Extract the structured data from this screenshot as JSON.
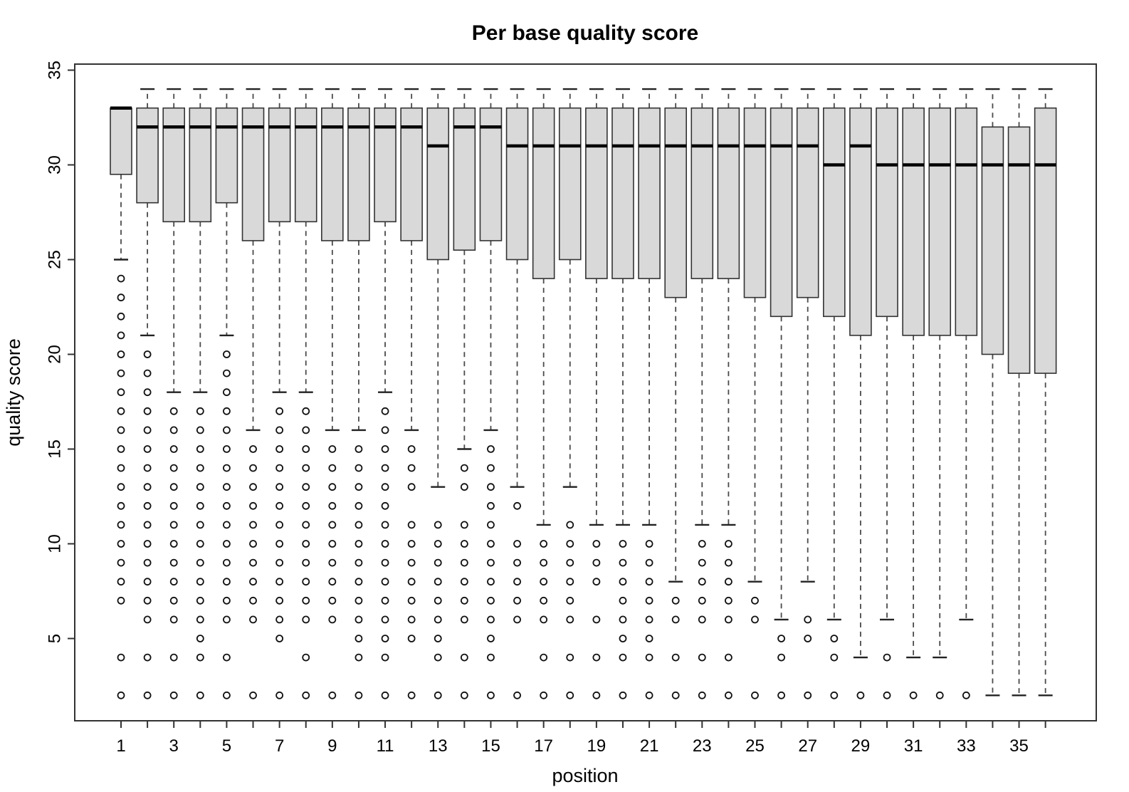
{
  "chart_data": {
    "type": "boxplot",
    "title": "Per base quality score",
    "xlabel": "position",
    "ylabel": "quality score",
    "grid": false,
    "legend": false,
    "n_positions": 36,
    "x_tick_positions_labeled": [
      1,
      3,
      5,
      7,
      9,
      11,
      13,
      15,
      17,
      19,
      21,
      23,
      25,
      27,
      29,
      31,
      33,
      35
    ],
    "y_ticks": [
      5,
      10,
      15,
      20,
      25,
      30,
      35
    ],
    "ylim": [
      0.7,
      35.3
    ],
    "xlim": [
      -0.9,
      37.9
    ],
    "colors": {
      "box_fill": "#d9d9d9",
      "box_border": "#333333",
      "median": "#000000",
      "whisker": "#4a4a4a",
      "cap": "#222222",
      "outlier": "#111111",
      "frame": "#333333",
      "background": "#ffffff"
    },
    "boxes": [
      {
        "pos": 1,
        "q1": 29.5,
        "median": 33,
        "q3": 33,
        "whisker_low": 25,
        "whisker_high": 33,
        "outliers": [
          24,
          23,
          22,
          21,
          20,
          19,
          18,
          17,
          16,
          15,
          14,
          13,
          12,
          11,
          10,
          9,
          8,
          7,
          4,
          2
        ]
      },
      {
        "pos": 2,
        "q1": 28,
        "median": 32,
        "q3": 33,
        "whisker_low": 21,
        "whisker_high": 34,
        "outliers": [
          20,
          19,
          18,
          17,
          16,
          15,
          14,
          13,
          12,
          11,
          10,
          9,
          8,
          7,
          6,
          4,
          2
        ]
      },
      {
        "pos": 3,
        "q1": 27,
        "median": 32,
        "q3": 33,
        "whisker_low": 18,
        "whisker_high": 34,
        "outliers": [
          17,
          16,
          15,
          14,
          13,
          12,
          11,
          10,
          9,
          8,
          7,
          6,
          4,
          2
        ]
      },
      {
        "pos": 4,
        "q1": 27,
        "median": 32,
        "q3": 33,
        "whisker_low": 18,
        "whisker_high": 34,
        "outliers": [
          17,
          16,
          15,
          14,
          13,
          12,
          11,
          10,
          9,
          8,
          7,
          6,
          5,
          4,
          2
        ]
      },
      {
        "pos": 5,
        "q1": 28,
        "median": 32,
        "q3": 33,
        "whisker_low": 21,
        "whisker_high": 34,
        "outliers": [
          20,
          19,
          18,
          17,
          16,
          15,
          14,
          13,
          12,
          11,
          10,
          9,
          8,
          7,
          6,
          4,
          2
        ]
      },
      {
        "pos": 6,
        "q1": 26,
        "median": 32,
        "q3": 33,
        "whisker_low": 16,
        "whisker_high": 34,
        "outliers": [
          15,
          14,
          13,
          12,
          11,
          10,
          9,
          8,
          7,
          6,
          2
        ]
      },
      {
        "pos": 7,
        "q1": 27,
        "median": 32,
        "q3": 33,
        "whisker_low": 18,
        "whisker_high": 34,
        "outliers": [
          17,
          16,
          15,
          14,
          13,
          12,
          11,
          10,
          9,
          8,
          7,
          6,
          5,
          2
        ]
      },
      {
        "pos": 8,
        "q1": 27,
        "median": 32,
        "q3": 33,
        "whisker_low": 18,
        "whisker_high": 34,
        "outliers": [
          17,
          16,
          15,
          14,
          13,
          12,
          11,
          10,
          9,
          8,
          7,
          6,
          4,
          2
        ]
      },
      {
        "pos": 9,
        "q1": 26,
        "median": 32,
        "q3": 33,
        "whisker_low": 16,
        "whisker_high": 34,
        "outliers": [
          15,
          14,
          13,
          12,
          11,
          10,
          9,
          8,
          7,
          6,
          2
        ]
      },
      {
        "pos": 10,
        "q1": 26,
        "median": 32,
        "q3": 33,
        "whisker_low": 16,
        "whisker_high": 34,
        "outliers": [
          15,
          14,
          13,
          12,
          11,
          10,
          9,
          8,
          7,
          6,
          5,
          4,
          2
        ]
      },
      {
        "pos": 11,
        "q1": 27,
        "median": 32,
        "q3": 33,
        "whisker_low": 18,
        "whisker_high": 34,
        "outliers": [
          17,
          16,
          15,
          14,
          13,
          12,
          11,
          10,
          9,
          8,
          7,
          6,
          5,
          4,
          2
        ]
      },
      {
        "pos": 12,
        "q1": 26,
        "median": 32,
        "q3": 33,
        "whisker_low": 16,
        "whisker_high": 34,
        "outliers": [
          15,
          14,
          13,
          11,
          10,
          9,
          8,
          7,
          6,
          5,
          2
        ]
      },
      {
        "pos": 13,
        "q1": 25,
        "median": 31,
        "q3": 33,
        "whisker_low": 13,
        "whisker_high": 34,
        "outliers": [
          11,
          10,
          9,
          8,
          7,
          6,
          5,
          4,
          2
        ]
      },
      {
        "pos": 14,
        "q1": 25.5,
        "median": 32,
        "q3": 33,
        "whisker_low": 15,
        "whisker_high": 34,
        "outliers": [
          14,
          13,
          11,
          10,
          9,
          8,
          7,
          6,
          4,
          2
        ]
      },
      {
        "pos": 15,
        "q1": 26,
        "median": 32,
        "q3": 33,
        "whisker_low": 16,
        "whisker_high": 34,
        "outliers": [
          15,
          14,
          13,
          12,
          11,
          10,
          9,
          8,
          7,
          6,
          5,
          4,
          2
        ]
      },
      {
        "pos": 16,
        "q1": 25,
        "median": 31,
        "q3": 33,
        "whisker_low": 13,
        "whisker_high": 34,
        "outliers": [
          12,
          10,
          9,
          8,
          7,
          6,
          2
        ]
      },
      {
        "pos": 17,
        "q1": 24,
        "median": 31,
        "q3": 33,
        "whisker_low": 11,
        "whisker_high": 34,
        "outliers": [
          10,
          9,
          8,
          7,
          6,
          4,
          2
        ]
      },
      {
        "pos": 18,
        "q1": 25,
        "median": 31,
        "q3": 33,
        "whisker_low": 13,
        "whisker_high": 34,
        "outliers": [
          11,
          10,
          9,
          8,
          7,
          6,
          4,
          2
        ]
      },
      {
        "pos": 19,
        "q1": 24,
        "median": 31,
        "q3": 33,
        "whisker_low": 11,
        "whisker_high": 34,
        "outliers": [
          10,
          9,
          8,
          6,
          4,
          2
        ]
      },
      {
        "pos": 20,
        "q1": 24,
        "median": 31,
        "q3": 33,
        "whisker_low": 11,
        "whisker_high": 34,
        "outliers": [
          10,
          9,
          8,
          7,
          6,
          5,
          4,
          2
        ]
      },
      {
        "pos": 21,
        "q1": 24,
        "median": 31,
        "q3": 33,
        "whisker_low": 11,
        "whisker_high": 34,
        "outliers": [
          10,
          9,
          8,
          7,
          6,
          5,
          4,
          2
        ]
      },
      {
        "pos": 22,
        "q1": 23,
        "median": 31,
        "q3": 33,
        "whisker_low": 8,
        "whisker_high": 34,
        "outliers": [
          7,
          6,
          4,
          2
        ]
      },
      {
        "pos": 23,
        "q1": 24,
        "median": 31,
        "q3": 33,
        "whisker_low": 11,
        "whisker_high": 34,
        "outliers": [
          10,
          9,
          8,
          7,
          6,
          4,
          2
        ]
      },
      {
        "pos": 24,
        "q1": 24,
        "median": 31,
        "q3": 33,
        "whisker_low": 11,
        "whisker_high": 34,
        "outliers": [
          10,
          9,
          8,
          7,
          6,
          4,
          2
        ]
      },
      {
        "pos": 25,
        "q1": 23,
        "median": 31,
        "q3": 33,
        "whisker_low": 8,
        "whisker_high": 34,
        "outliers": [
          7,
          6,
          2
        ]
      },
      {
        "pos": 26,
        "q1": 22,
        "median": 31,
        "q3": 33,
        "whisker_low": 6,
        "whisker_high": 34,
        "outliers": [
          5,
          4,
          2
        ]
      },
      {
        "pos": 27,
        "q1": 23,
        "median": 31,
        "q3": 33,
        "whisker_low": 8,
        "whisker_high": 34,
        "outliers": [
          6,
          5,
          2
        ]
      },
      {
        "pos": 28,
        "q1": 22,
        "median": 30,
        "q3": 33,
        "whisker_low": 6,
        "whisker_high": 34,
        "outliers": [
          5,
          4,
          2
        ]
      },
      {
        "pos": 29,
        "q1": 21,
        "median": 31,
        "q3": 33,
        "whisker_low": 4,
        "whisker_high": 34,
        "outliers": [
          2
        ]
      },
      {
        "pos": 30,
        "q1": 22,
        "median": 30,
        "q3": 33,
        "whisker_low": 6,
        "whisker_high": 34,
        "outliers": [
          4,
          2
        ]
      },
      {
        "pos": 31,
        "q1": 21,
        "median": 30,
        "q3": 33,
        "whisker_low": 4,
        "whisker_high": 34,
        "outliers": [
          2
        ]
      },
      {
        "pos": 32,
        "q1": 21,
        "median": 30,
        "q3": 33,
        "whisker_low": 4,
        "whisker_high": 34,
        "outliers": [
          2
        ]
      },
      {
        "pos": 33,
        "q1": 21,
        "median": 30,
        "q3": 33,
        "whisker_low": 6,
        "whisker_high": 34,
        "outliers": [
          2
        ]
      },
      {
        "pos": 34,
        "q1": 20,
        "median": 30,
        "q3": 32,
        "whisker_low": 2,
        "whisker_high": 34,
        "outliers": []
      },
      {
        "pos": 35,
        "q1": 19,
        "median": 30,
        "q3": 32,
        "whisker_low": 2,
        "whisker_high": 34,
        "outliers": []
      },
      {
        "pos": 36,
        "q1": 19,
        "median": 30,
        "q3": 33,
        "whisker_low": 2,
        "whisker_high": 34,
        "outliers": []
      }
    ]
  }
}
